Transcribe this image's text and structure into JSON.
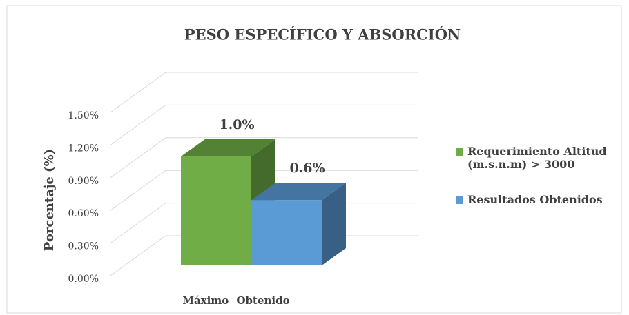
{
  "chart_data": {
    "type": "bar3d",
    "title": "PESO ESPECÍFICO Y ABSORCIÓN",
    "y_label": "Porcentaje (%)",
    "categories": [
      "Máximo Obtenido"
    ],
    "series": [
      {
        "name": "Requerimiento Altitud (m.s.n.m) > 3000",
        "color": "#70ad47",
        "values": [
          1.0
        ],
        "value_labels": [
          "1.0%"
        ]
      },
      {
        "name": "Resultados Obtenidos",
        "color": "#5b9bd5",
        "values": [
          0.6
        ],
        "value_labels": [
          "0.6%"
        ]
      }
    ],
    "ylim": [
      0,
      1.5
    ],
    "yticks": [
      {
        "value": 0,
        "label": "0.00%"
      },
      {
        "value": 0.3,
        "label": "0.30%"
      },
      {
        "value": 0.6,
        "label": "0.60%"
      },
      {
        "value": 0.9,
        "label": "0.90%"
      },
      {
        "value": 1.2,
        "label": "1.20%"
      },
      {
        "value": 1.5,
        "label": "1.50%"
      }
    ],
    "grid": true,
    "legend": "right"
  }
}
